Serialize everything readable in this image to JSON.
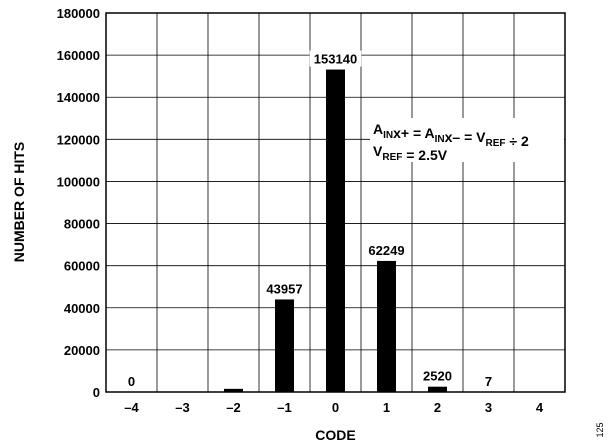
{
  "chart_data": {
    "type": "bar",
    "xlabel": "CODE",
    "ylabel": "NUMBER OF HITS",
    "categories": [
      "–4",
      "–3",
      "–2",
      "–1",
      "0",
      "1",
      "2",
      "3",
      "4"
    ],
    "values": [
      0,
      0,
      1500,
      43957,
      153140,
      62249,
      2520,
      7,
      0
    ],
    "data_labels": [
      "0",
      "",
      "",
      "43957",
      "153140",
      "62249",
      "2520",
      "7",
      ""
    ],
    "y_ticks": [
      "0",
      "20000",
      "40000",
      "60000",
      "80000",
      "100000",
      "120000",
      "140000",
      "160000",
      "180000"
    ],
    "ylim": [
      0,
      180000
    ],
    "grid": true,
    "bar_color": "#000000",
    "annotation": {
      "line1": [
        {
          "t": "A"
        },
        {
          "t": "IN",
          "sub": true
        },
        {
          "t": "x+ = A"
        },
        {
          "t": "IN",
          "sub": true
        },
        {
          "t": "x– = V"
        },
        {
          "t": "REF",
          "sub": true
        },
        {
          "t": " ÷ 2"
        }
      ],
      "line2": [
        {
          "t": "V"
        },
        {
          "t": "REF",
          "sub": true
        },
        {
          "t": " = 2.5V"
        }
      ]
    },
    "side_number": "125"
  }
}
